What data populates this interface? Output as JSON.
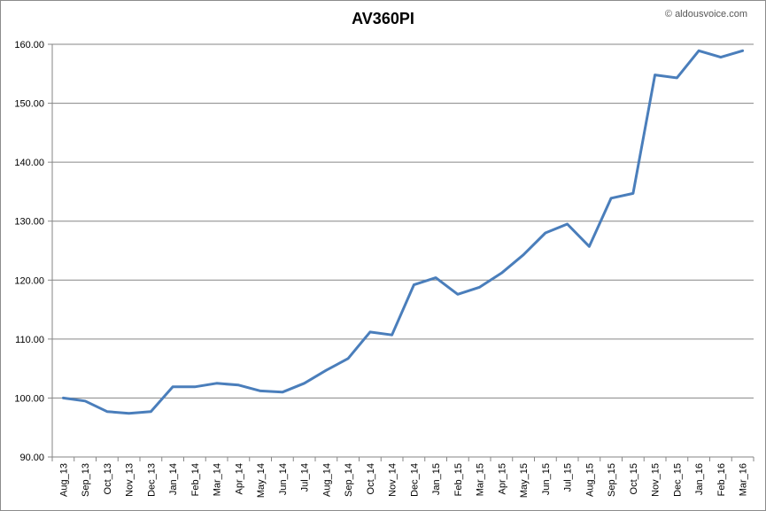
{
  "watermark": "© aldousvoice.com",
  "chart_data": {
    "type": "line",
    "title": "AV360PI",
    "xlabel": "",
    "ylabel": "",
    "ylim": [
      90,
      160
    ],
    "yticks": [
      "90.00",
      "100.00",
      "110.00",
      "120.00",
      "130.00",
      "140.00",
      "150.00",
      "160.00"
    ],
    "grid": "horizontal",
    "legend": "none",
    "colors": {
      "line": "#4a7ebb",
      "grid": "#868686",
      "axis": "#868686"
    },
    "categories": [
      "Aug_13",
      "Sep_13",
      "Oct_13",
      "Nov_13",
      "Dec_13",
      "Jan_14",
      "Feb_14",
      "Mar_14",
      "Apr_14",
      "May_14",
      "Jun_14",
      "Jul_14",
      "Aug_14",
      "Sep_14",
      "Oct_14",
      "Nov_14",
      "Dec_14",
      "Jan_15",
      "Feb_15",
      "Mar_15",
      "Apr_15",
      "May_15",
      "Jun_15",
      "Jul_15",
      "Aug_15",
      "Sep_15",
      "Oct_15",
      "Nov_15",
      "Dec_15",
      "Jan_16",
      "Feb_16",
      "Mar_16"
    ],
    "series": [
      {
        "values": [
          100.0,
          99.5,
          97.7,
          97.4,
          97.7,
          101.9,
          101.9,
          102.5,
          102.2,
          101.2,
          101.0,
          102.5,
          104.7,
          106.7,
          111.2,
          110.7,
          119.2,
          120.4,
          117.6,
          118.8,
          121.2,
          124.3,
          128.0,
          129.5,
          125.7,
          133.9,
          134.7,
          154.8,
          154.3,
          158.9,
          157.8,
          158.9
        ]
      }
    ]
  }
}
